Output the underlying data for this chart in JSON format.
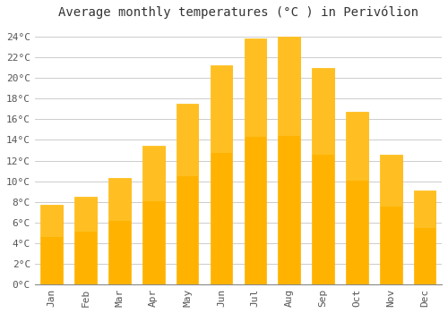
{
  "title": "Average monthly temperatures (°C ) in Perivólion",
  "months": [
    "Jan",
    "Feb",
    "Mar",
    "Apr",
    "May",
    "Jun",
    "Jul",
    "Aug",
    "Sep",
    "Oct",
    "Nov",
    "Dec"
  ],
  "temperatures": [
    7.7,
    8.5,
    10.3,
    13.4,
    17.5,
    21.2,
    23.8,
    24.0,
    21.0,
    16.7,
    12.6,
    9.1
  ],
  "bar_color_top": "#FFB300",
  "bar_color_bottom": "#FFA500",
  "bar_edge_color": "#FFB300",
  "background_color": "#FFFFFF",
  "grid_color": "#CCCCCC",
  "ylim": [
    0,
    25
  ],
  "yticks": [
    0,
    2,
    4,
    6,
    8,
    10,
    12,
    14,
    16,
    18,
    20,
    22,
    24
  ],
  "title_fontsize": 10,
  "tick_fontsize": 8,
  "font_family": "monospace"
}
